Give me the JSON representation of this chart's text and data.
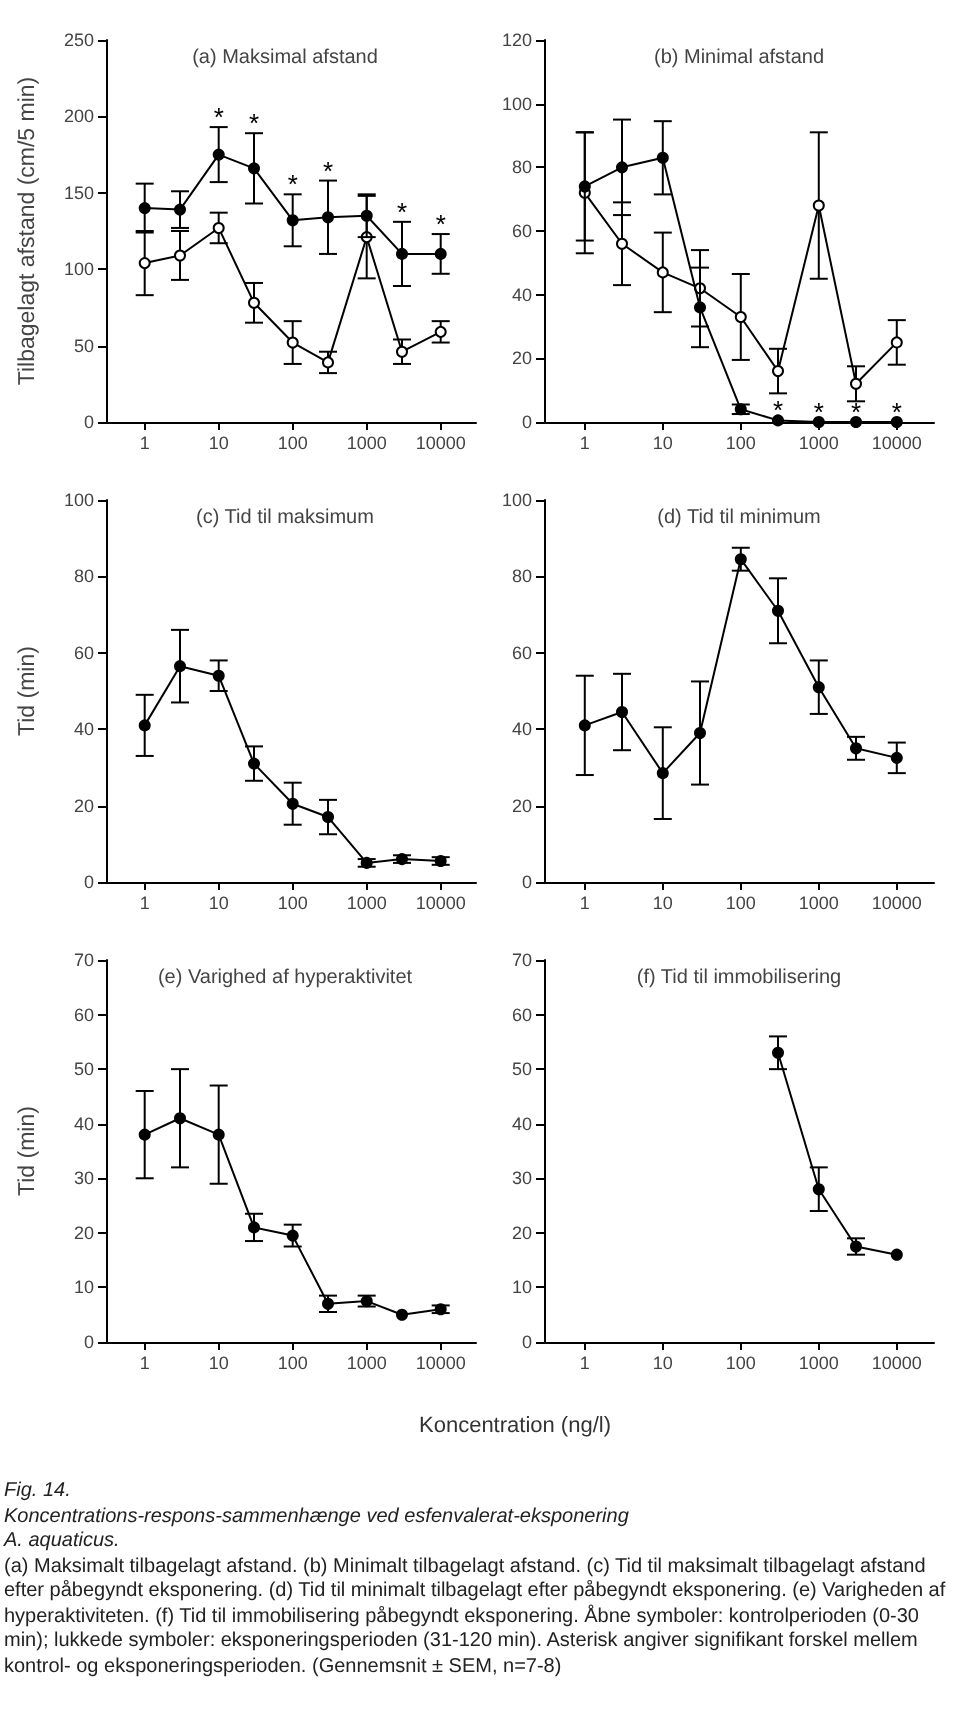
{
  "chart_data": [
    {
      "type": "line",
      "title": "(a) Maksimal afstand",
      "ylabel": "Tilbagelagt afstand (cm/5 min)",
      "x": [
        1,
        3,
        10,
        30,
        100,
        300,
        1000,
        3000,
        10000
      ],
      "log": "x",
      "xlim": [
        0.3,
        30000
      ],
      "xticks": [
        1,
        10,
        100,
        1000,
        10000
      ],
      "ylim": [
        0,
        250
      ],
      "yticks": [
        0,
        50,
        100,
        150,
        200,
        250
      ],
      "marker": "circle",
      "series": [
        {
          "color": "#000000",
          "colors": [
            "#ffffff",
            "#ffffff",
            "#ffffff",
            "#ffffff",
            "#ffffff",
            "#ffffff",
            "#ffffff",
            "#ffffff",
            "#ffffff"
          ],
          "values": [
            104,
            109,
            127,
            78,
            52,
            39,
            121,
            46,
            59
          ],
          "errors": [
            21,
            16,
            10,
            13,
            14,
            7,
            27,
            8,
            7
          ]
        },
        {
          "color": "#000000",
          "values": [
            140,
            139,
            175,
            166,
            132,
            134,
            135,
            110,
            110
          ],
          "errors": [
            16,
            12,
            18,
            23,
            17,
            24,
            14,
            21,
            13
          ]
        }
      ],
      "annotations": [
        {
          "text": "*",
          "x": 10,
          "y": 193
        },
        {
          "text": "*",
          "x": 30,
          "y": 189
        },
        {
          "text": "*",
          "x": 100,
          "y": 149
        },
        {
          "text": "*",
          "x": 300,
          "y": 158
        },
        {
          "text": "*",
          "x": 3000,
          "y": 131
        },
        {
          "text": "*",
          "x": 10000,
          "y": 123
        }
      ]
    },
    {
      "type": "line",
      "title": "(b) Minimal afstand",
      "x": [
        1,
        3,
        10,
        30,
        100,
        300,
        1000,
        3000,
        10000
      ],
      "log": "x",
      "xlim": [
        0.3,
        30000
      ],
      "xticks": [
        1,
        10,
        100,
        1000,
        10000
      ],
      "ylim": [
        0,
        120
      ],
      "yticks": [
        0,
        20,
        40,
        60,
        80,
        100,
        120
      ],
      "marker": "circle",
      "series": [
        {
          "color": "#000000",
          "colors": [
            "#ffffff",
            "#ffffff",
            "#ffffff",
            "#ffffff",
            "#ffffff",
            "#ffffff",
            "#ffffff",
            "#ffffff",
            "#ffffff"
          ],
          "values": [
            72,
            56,
            47,
            42,
            33,
            16,
            68,
            12,
            25
          ],
          "errors": [
            19,
            13,
            12.5,
            12,
            13.5,
            7,
            23,
            5.5,
            7
          ]
        },
        {
          "color": "#000000",
          "values": [
            74,
            80,
            83,
            36,
            4,
            0.5,
            0,
            0,
            0
          ],
          "errors": [
            17,
            15,
            11.5,
            12.5,
            1.5,
            null,
            null,
            null,
            null
          ]
        }
      ],
      "annotations": [
        {
          "text": "*",
          "x": 300,
          "y": 0.5
        },
        {
          "text": "*",
          "x": 1000,
          "y": 0
        },
        {
          "text": "*",
          "x": 3000,
          "y": 0
        },
        {
          "text": "*",
          "x": 10000,
          "y": 0
        }
      ]
    },
    {
      "type": "line",
      "title": "(c) Tid til maksimum",
      "ylabel": "Tid (min)",
      "x": [
        1,
        3,
        10,
        30,
        100,
        300,
        1000,
        3000,
        10000
      ],
      "log": "x",
      "xlim": [
        0.3,
        30000
      ],
      "xticks": [
        1,
        10,
        100,
        1000,
        10000
      ],
      "ylim": [
        0,
        100
      ],
      "yticks": [
        0,
        20,
        40,
        60,
        80,
        100
      ],
      "marker": "circle",
      "series": [
        {
          "color": "#000000",
          "values": [
            41,
            56.5,
            54,
            31,
            20.5,
            17,
            5,
            6,
            5.5
          ],
          "errors": [
            8,
            9.5,
            4,
            4.5,
            5.5,
            4.5,
            1,
            1,
            1
          ]
        }
      ]
    },
    {
      "type": "line",
      "title": "(d) Tid til minimum",
      "x": [
        1,
        3,
        10,
        30,
        100,
        300,
        1000,
        3000,
        10000
      ],
      "log": "x",
      "xlim": [
        0.3,
        30000
      ],
      "xticks": [
        1,
        10,
        100,
        1000,
        10000
      ],
      "ylim": [
        0,
        100
      ],
      "yticks": [
        0,
        20,
        40,
        60,
        80,
        100
      ],
      "marker": "circle",
      "series": [
        {
          "color": "#000000",
          "values": [
            41,
            44.5,
            28.5,
            39,
            84.5,
            71,
            51,
            35,
            32.5
          ],
          "errors": [
            13,
            10,
            12,
            13.5,
            3,
            8.5,
            7,
            3,
            4
          ]
        }
      ]
    },
    {
      "type": "line",
      "title": "(e) Varighed af hyperaktivitet",
      "ylabel": "Tid (min)",
      "xlabel": "Koncentration (ng/l)",
      "x": [
        1,
        3,
        10,
        30,
        100,
        300,
        1000,
        3000,
        10000
      ],
      "log": "x",
      "xlim": [
        0.3,
        30000
      ],
      "xticks": [
        1,
        10,
        100,
        1000,
        10000
      ],
      "ylim": [
        0,
        70
      ],
      "yticks": [
        0,
        10,
        20,
        30,
        40,
        50,
        60,
        70
      ],
      "marker": "circle",
      "series": [
        {
          "color": "#000000",
          "values": [
            38,
            41,
            38,
            21,
            19.5,
            7,
            7.5,
            5,
            6
          ],
          "errors": [
            8,
            9,
            9,
            2.5,
            2,
            1.5,
            1,
            null,
            0.7
          ]
        }
      ]
    },
    {
      "type": "line",
      "title": "(f) Tid til immobilisering",
      "x": [
        300,
        1000,
        3000,
        10000
      ],
      "log": "x",
      "xlim": [
        0.3,
        30000
      ],
      "xticks": [
        1,
        10,
        100,
        1000,
        10000
      ],
      "ylim": [
        0,
        70
      ],
      "yticks": [
        0,
        10,
        20,
        30,
        40,
        50,
        60,
        70
      ],
      "marker": "circle",
      "series": [
        {
          "color": "#000000",
          "values": [
            53,
            28,
            17.5,
            16
          ],
          "errors": [
            3,
            4,
            1.5,
            null
          ]
        }
      ],
      "annotations": [
        "Fig. 14.",
        "Koncentrations-respons-sammenhænge ved esfenvalerat-eksponering",
        "A. aquaticus.",
        "(a) Maksimalt tilbagelagt afstand. (b) Minimalt tilbagelagt afstand. (c) Tid til maksimalt tilbagelagt afstand efter påbegyndt eksponering. (d) Tid til minimalt tilbagelagt efter påbegyndt eksponering. (e) Varigheden af hyperaktiviteten. (f) Tid til immobilisering påbegyndt eksponering. Åbne symboler: kontrolperioden (0-30 min); lukkede symboler: eksponeringsperioden (31-120 min). Asterisk angiver signifikant forskel mellem kontrol- og eksponeringsperioden. (Gennemsnit ± SEM, n=7-8)"
      ]
    }
  ]
}
